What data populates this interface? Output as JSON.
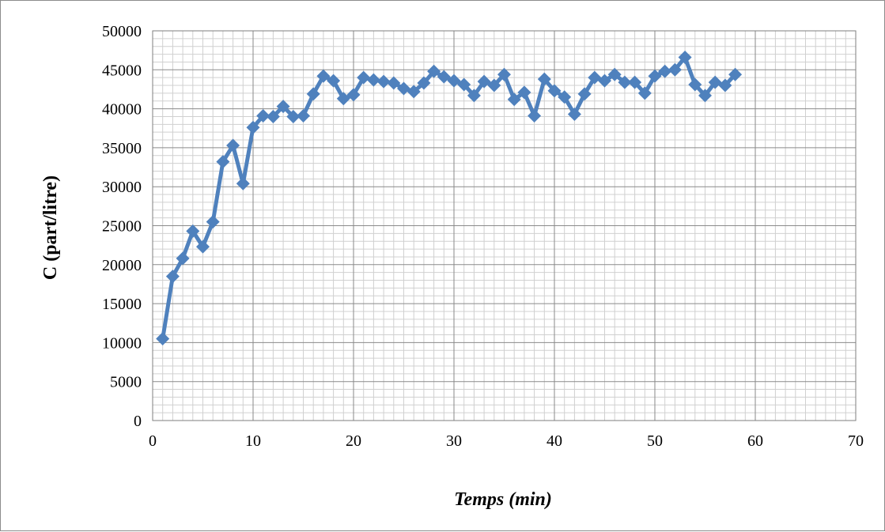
{
  "chart_data": {
    "type": "line",
    "title": "",
    "xlabel": "Temps (min)",
    "ylabel": "C (part/litre)",
    "xlim": [
      0,
      70
    ],
    "ylim": [
      0,
      50000
    ],
    "x_major_step": 10,
    "x_minor_step": 1,
    "y_major_step": 5000,
    "y_minor_step": 1000,
    "x_ticks": [
      "0",
      "10",
      "20",
      "30",
      "40",
      "50",
      "60",
      "70"
    ],
    "y_ticks": [
      "0",
      "5000",
      "10000",
      "15000",
      "20000",
      "25000",
      "30000",
      "35000",
      "40000",
      "45000",
      "50000"
    ],
    "grid": true,
    "legend": "none",
    "marker": "diamond",
    "series_color": "#4F81BD",
    "series": [
      {
        "x": [
          1,
          2,
          3,
          4,
          5,
          6,
          7,
          8,
          9,
          10,
          11,
          12,
          13,
          14,
          15,
          16,
          17,
          18,
          19,
          20,
          21,
          22,
          23,
          24,
          25,
          26,
          27,
          28,
          29,
          30,
          31,
          32,
          33,
          34,
          35,
          36,
          37,
          38,
          39,
          40,
          41,
          42,
          43,
          44,
          45,
          46,
          47,
          48,
          49,
          50,
          51,
          52,
          53,
          54,
          55,
          56,
          57,
          58
        ],
        "values": [
          10500,
          18500,
          20800,
          24300,
          22300,
          25500,
          33200,
          35300,
          30400,
          37600,
          39100,
          39000,
          40300,
          39000,
          39100,
          41900,
          44200,
          43600,
          41300,
          41800,
          44000,
          43700,
          43500,
          43300,
          42600,
          42200,
          43300,
          44800,
          44100,
          43600,
          43100,
          41700,
          43500,
          43000,
          44400,
          41200,
          42100,
          39100,
          43800,
          42300,
          41500,
          39300,
          41900,
          44000,
          43600,
          44400,
          43400,
          43400,
          42000,
          44200,
          44800,
          45000,
          46600,
          43100,
          41700,
          43400,
          43000,
          44400
        ]
      }
    ]
  }
}
